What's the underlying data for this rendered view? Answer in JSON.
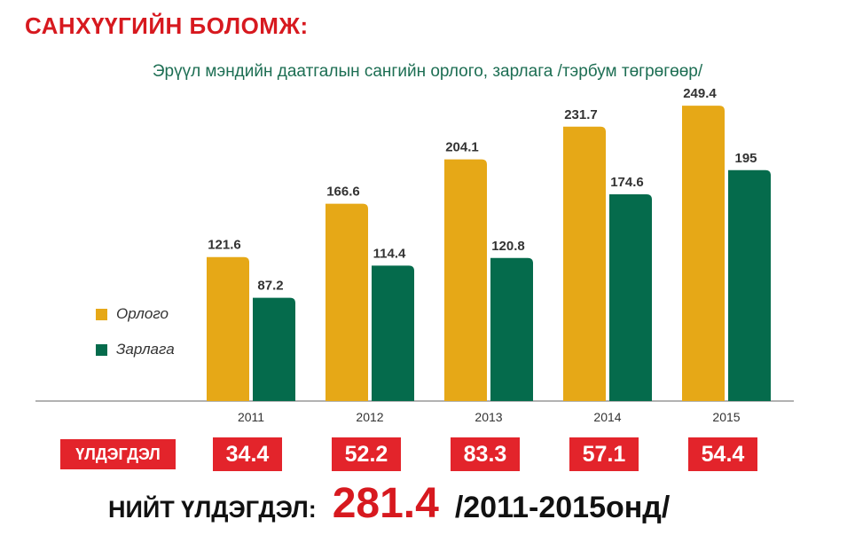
{
  "header": {
    "title": "САНХҮҮГИЙН БОЛОМЖ:"
  },
  "chart_data": {
    "type": "bar",
    "title": "Эрүүл мэндийн даатгалын сангийн орлого, зарлага /тэрбум төгрөгөөр/",
    "categories": [
      "2011",
      "2012",
      "2013",
      "2014",
      "2015"
    ],
    "series": [
      {
        "name": "Орлого",
        "color": "#e6a817",
        "values": [
          121.6,
          166.6,
          204.1,
          231.7,
          249.4
        ],
        "labels": [
          "121.6",
          "166.6",
          "204.1",
          "231.7",
          "249.4"
        ]
      },
      {
        "name": "Зарлага",
        "color": "#056b4c",
        "values": [
          87.2,
          114.4,
          120.8,
          174.6,
          195
        ],
        "labels": [
          "87.2",
          "114.4",
          "120.8",
          "174.6",
          "195"
        ]
      }
    ],
    "ylim": [
      0,
      260
    ],
    "grid": false,
    "legend": "left"
  },
  "balance": {
    "label": "ҮЛДЭГДЭЛ",
    "values": [
      "34.4",
      "52.2",
      "83.3",
      "57.1",
      "54.4"
    ],
    "color": "#e3242b"
  },
  "total": {
    "label": "НИЙТ ҮЛДЭГДЭЛ:",
    "value": "281.4",
    "period": "/2011-2015онд/"
  }
}
